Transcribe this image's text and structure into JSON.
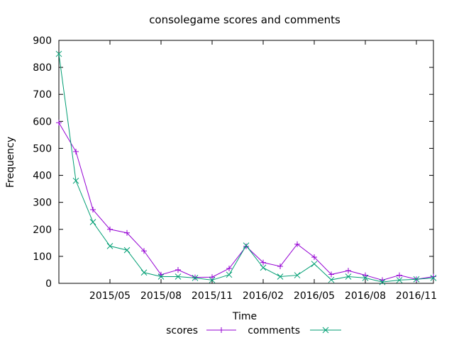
{
  "chart_data": {
    "type": "line",
    "title": "consolegame scores and comments",
    "xlabel": "Time",
    "ylabel": "Frequency",
    "ylim": [
      0,
      900
    ],
    "yticks": [
      0,
      100,
      200,
      300,
      400,
      500,
      600,
      700,
      800,
      900
    ],
    "xlim": [
      "2015-02",
      "2016-12"
    ],
    "xticks": [
      "2015/05",
      "2015/08",
      "2015/11",
      "2016/02",
      "2016/05",
      "2016/08",
      "2016/11"
    ],
    "x": [
      "2015-02",
      "2015-03",
      "2015-04",
      "2015-05",
      "2015-06",
      "2015-07",
      "2015-08",
      "2015-09",
      "2015-10",
      "2015-11",
      "2015-12",
      "2016-01",
      "2016-02",
      "2016-03",
      "2016-04",
      "2016-05",
      "2016-06",
      "2016-07",
      "2016-08",
      "2016-09",
      "2016-10",
      "2016-11",
      "2016-12"
    ],
    "series": [
      {
        "name": "scores",
        "color": "#9400d3",
        "marker": "plus",
        "values": [
          595,
          488,
          273,
          200,
          187,
          120,
          32,
          50,
          22,
          23,
          55,
          137,
          77,
          63,
          145,
          97,
          33,
          47,
          30,
          12,
          30,
          15,
          25
        ]
      },
      {
        "name": "comments",
        "color": "#009e73",
        "marker": "cross",
        "values": [
          850,
          380,
          227,
          138,
          123,
          40,
          25,
          25,
          20,
          12,
          32,
          140,
          58,
          25,
          30,
          72,
          13,
          25,
          20,
          5,
          12,
          15,
          20
        ]
      }
    ],
    "grid": false,
    "legend": "bottom"
  }
}
